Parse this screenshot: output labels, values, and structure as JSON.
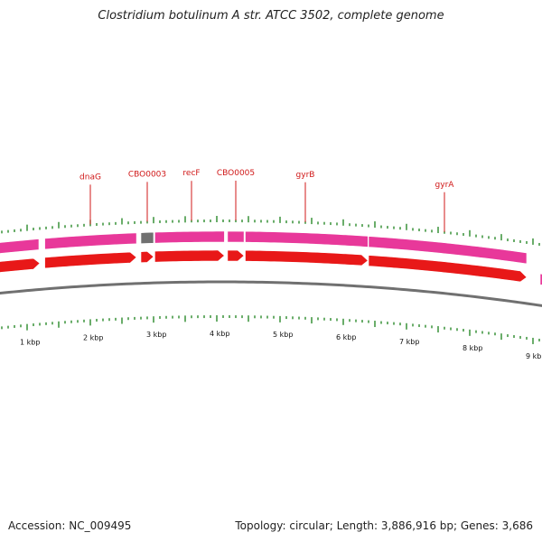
{
  "title": "Clostridium botulinum A str. ATCC 3502, complete genome",
  "footer": {
    "accession": "Accession: NC_009495",
    "summary": "Topology: circular; Length: 3,886,916 bp; Genes: 3,686"
  },
  "genes": [
    {
      "name": "dnaG",
      "start_kbp": 1.28,
      "end_kbp": 2.73,
      "type": "CDS"
    },
    {
      "name": "CBO0003",
      "start_kbp": 2.8,
      "end_kbp": 3.0,
      "type": "misc"
    },
    {
      "name": "recF",
      "start_kbp": 3.02,
      "end_kbp": 4.12,
      "type": "CDS"
    },
    {
      "name": "CBO0005",
      "start_kbp": 4.17,
      "end_kbp": 4.43,
      "type": "CDS"
    },
    {
      "name": "gyrB",
      "start_kbp": 4.45,
      "end_kbp": 6.39,
      "type": "CDS"
    },
    {
      "name": "gyrA",
      "start_kbp": 6.4,
      "end_kbp": 8.9,
      "type": "CDS"
    }
  ],
  "gene_label_positions_kbp": [
    {
      "name": "dnaG",
      "kbp": 2.0
    },
    {
      "name": "CBO0003",
      "kbp": 2.9
    },
    {
      "name": "recF",
      "kbp": 3.6
    },
    {
      "name": "CBO0005",
      "kbp": 4.3
    },
    {
      "name": "gyrB",
      "kbp": 5.4
    },
    {
      "name": "gyrA",
      "kbp": 7.6
    }
  ],
  "scale_labels": [
    "1 kbp",
    "2 kbp",
    "3 kbp",
    "4 kbp",
    "5 kbp",
    "6 kbp",
    "7 kbp",
    "8 kbp",
    "9 kbp"
  ],
  "colors": {
    "cds_arrow": "#e81818",
    "cds_band": "#e8389a",
    "misc_band": "#707070",
    "backbone": "#707070",
    "tick": "#2a8a2a",
    "gene_label": "#d01818"
  }
}
